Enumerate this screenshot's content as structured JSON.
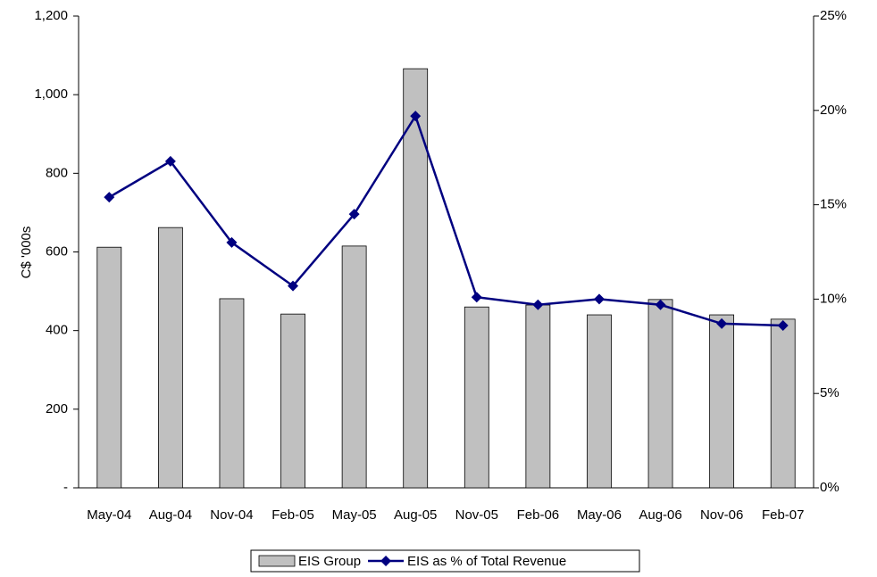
{
  "chart_data": {
    "type": "bar-line",
    "y_label": "C$ '000s",
    "categories": [
      "May-04",
      "Aug-04",
      "Nov-04",
      "Feb-05",
      "May-05",
      "Aug-05",
      "Nov-05",
      "Feb-06",
      "May-06",
      "Aug-06",
      "Nov-06",
      "Feb-07"
    ],
    "series": [
      {
        "name": "EIS Group",
        "type": "bar",
        "color": "#c0c0c0",
        "values": [
          612,
          662,
          481,
          442,
          615,
          1066,
          460,
          465,
          440,
          479,
          440,
          429
        ]
      },
      {
        "name": "EIS as % of Total Revenue",
        "type": "line",
        "axis": "y2",
        "color": "#000080",
        "values": [
          15.4,
          17.3,
          13.0,
          10.7,
          14.5,
          19.7,
          10.1,
          9.7,
          10.0,
          9.7,
          8.7,
          8.6
        ]
      }
    ],
    "ylim": [
      0,
      1200
    ],
    "yticks": [
      {
        "value": 0,
        "label": "-"
      },
      200,
      400,
      600,
      800,
      {
        "value": 1000,
        "label": "1,000"
      },
      {
        "value": 1200,
        "label": "1,200"
      }
    ],
    "y2lim": [
      0,
      25
    ],
    "y2ticks": [
      {
        "value": 0,
        "label": "0%"
      },
      {
        "value": 5,
        "label": "5%"
      },
      {
        "value": 10,
        "label": "10%"
      },
      {
        "value": 15,
        "label": "15%"
      },
      {
        "value": 20,
        "label": "20%"
      },
      {
        "value": 25,
        "label": "25%"
      }
    ],
    "legend": "bottom"
  }
}
